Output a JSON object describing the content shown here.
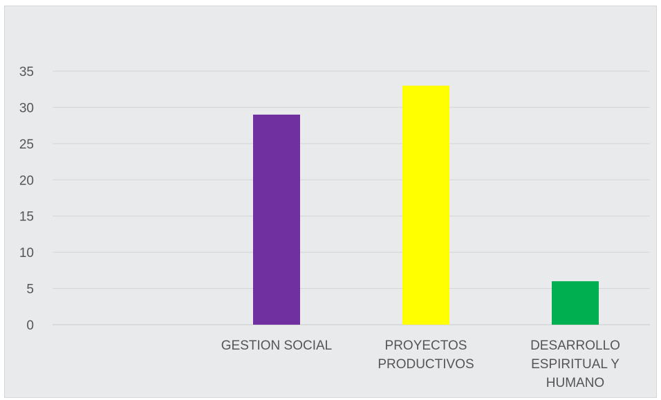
{
  "chart_data": {
    "type": "bar",
    "categories": [
      [
        "GESTION SOCIAL"
      ],
      [
        "PROYECTOS",
        "PRODUCTIVOS"
      ],
      [
        "DESARROLLO",
        "ESPIRITUAL Y",
        "HUMANO"
      ]
    ],
    "values": [
      29,
      33,
      6
    ],
    "colors": [
      "#7030a0",
      "#ffff00",
      "#00b050"
    ],
    "title": "",
    "xlabel": "",
    "ylabel": "",
    "ylim": [
      0,
      35
    ],
    "yticks": [
      "0",
      "5",
      "10",
      "15",
      "20",
      "25",
      "30",
      "35"
    ],
    "grid": true,
    "legend": "none"
  }
}
